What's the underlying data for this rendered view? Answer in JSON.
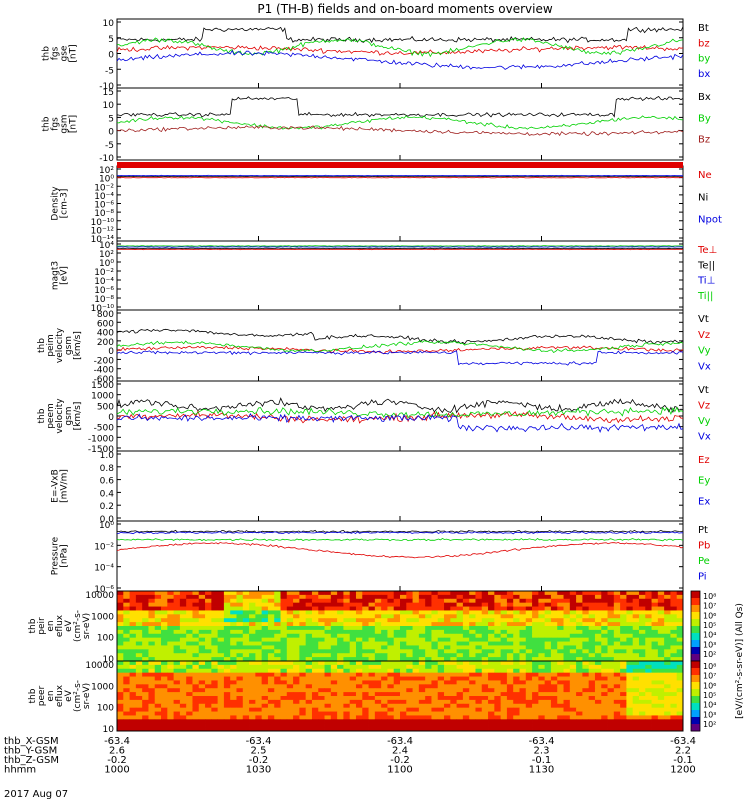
{
  "title": "P1 (TH-B) fields and on-board moments overview",
  "date_label": "2017 Aug 07",
  "colors": {
    "black": "#000000",
    "red": "#e00000",
    "green": "#00d000",
    "blue": "#0000e0",
    "brown": "#a0201f"
  },
  "orbit_rows": [
    {
      "label": "thb_X-GSM",
      "values": [
        "-63.4",
        "-63.4",
        "-63.4",
        "-63.4",
        "-63.4"
      ]
    },
    {
      "label": "thb_Y-GSM",
      "values": [
        "2.6",
        "2.5",
        "2.4",
        "2.3",
        "2.2"
      ]
    },
    {
      "label": "thb_Z-GSM",
      "values": [
        "-0.2",
        "-0.2",
        "-0.2",
        "-0.1",
        "-0.1"
      ]
    },
    {
      "label": "hhmm",
      "values": [
        "1000",
        "1030",
        "1100",
        "1130",
        "1200"
      ]
    }
  ],
  "chart_data": [
    {
      "type": "line",
      "ylabel": [
        "thb",
        "fgs",
        "gse",
        "[nT]"
      ],
      "ylim": [
        -10,
        10
      ],
      "ticks": [
        "10",
        "5",
        "0",
        "-5",
        "-10"
      ],
      "series": [
        {
          "name": "Bt",
          "color": "black"
        },
        {
          "name": "bz",
          "color": "red"
        },
        {
          "name": "by",
          "color": "green"
        },
        {
          "name": "bx",
          "color": "blue"
        }
      ]
    },
    {
      "type": "line",
      "ylabel": [
        "thb",
        "fgs",
        "gsm",
        "[nT]"
      ],
      "ylim": [
        -12,
        15
      ],
      "ticks": [
        "15",
        "10",
        "5",
        "0",
        "-5",
        "-10"
      ],
      "series": [
        {
          "name": "Bx",
          "color": "black"
        },
        {
          "name": "By",
          "color": "green"
        },
        {
          "name": "Bz",
          "color": "brown"
        }
      ]
    },
    {
      "type": "line",
      "ylabel": [
        "Density",
        "[cm-3]"
      ],
      "ylim": [
        -14,
        4
      ],
      "scale": "log",
      "ticks": [
        "10²",
        "10⁰",
        "10⁻²",
        "10⁻⁴",
        "10⁻⁶",
        "10⁻⁸",
        "10⁻¹⁰",
        "10⁻¹²",
        "10⁻¹⁴"
      ],
      "series": [
        {
          "name": "Ne",
          "color": "red"
        },
        {
          "name": "Ni",
          "color": "black"
        },
        {
          "name": "Npot",
          "color": "blue"
        }
      ]
    },
    {
      "type": "line",
      "ylabel": [
        "magt3",
        "[eV]"
      ],
      "ylim": [
        -10,
        4
      ],
      "scale": "log",
      "ticks": [
        "10⁴",
        "10²",
        "10⁰",
        "10⁻²",
        "10⁻⁴",
        "10⁻⁶",
        "10⁻⁸",
        "10⁻¹⁰"
      ],
      "series": [
        {
          "name": "Te⊥",
          "color": "red"
        },
        {
          "name": "Te||",
          "color": "black"
        },
        {
          "name": "Ti⊥",
          "color": "blue"
        },
        {
          "name": "Ti||",
          "color": "green"
        }
      ]
    },
    {
      "type": "line",
      "ylabel": [
        "thb",
        "peim",
        "velocity",
        "gsm",
        "[km/s]"
      ],
      "ylim": [
        -600,
        800
      ],
      "ticks": [
        "800",
        "600",
        "400",
        "200",
        "0",
        "-200",
        "-400",
        "-600"
      ],
      "series": [
        {
          "name": "Vt",
          "color": "black"
        },
        {
          "name": "Vz",
          "color": "red"
        },
        {
          "name": "Vy",
          "color": "green"
        },
        {
          "name": "Vx",
          "color": "blue"
        }
      ]
    },
    {
      "type": "line",
      "ylabel": [
        "thb",
        "peem",
        "velocity",
        "gsm",
        "[km/s]"
      ],
      "ylim": [
        -1500,
        1500
      ],
      "ticks": [
        "1500",
        "1000",
        "500",
        "0",
        "-500",
        "-1000",
        "-1500"
      ],
      "series": [
        {
          "name": "Vt",
          "color": "black"
        },
        {
          "name": "Vz",
          "color": "red"
        },
        {
          "name": "Vy",
          "color": "green"
        },
        {
          "name": "Vx",
          "color": "blue"
        }
      ]
    },
    {
      "type": "line",
      "ylabel": [
        "E=-VxB",
        "[mV/m]"
      ],
      "ylim": [
        0,
        1
      ],
      "ticks": [
        "1.0",
        "0.8",
        "0.6",
        "0.4",
        "0.2",
        "0.0"
      ],
      "series": [
        {
          "name": "Ez",
          "color": "red"
        },
        {
          "name": "Ey",
          "color": "green"
        },
        {
          "name": "Ex",
          "color": "blue"
        }
      ]
    },
    {
      "type": "line",
      "ylabel": [
        "Pressure",
        "[nPa]"
      ],
      "ylim": [
        -6,
        0
      ],
      "scale": "log",
      "ticks": [
        "10⁰",
        "10⁻²",
        "10⁻⁴",
        "10⁻⁶"
      ],
      "series": [
        {
          "name": "Pt",
          "color": "black"
        },
        {
          "name": "Pb",
          "color": "red"
        },
        {
          "name": "Pe",
          "color": "green"
        },
        {
          "name": "Pi",
          "color": "blue"
        }
      ]
    },
    {
      "type": "heatmap",
      "ylabel": [
        "thb",
        "peir",
        "en",
        "eflux",
        "eV",
        "(cm²-s-",
        "sr-eV)"
      ],
      "ylim": [
        5,
        20000
      ],
      "scale": "log",
      "ticks": [
        "10000",
        "1000",
        "100",
        "10"
      ]
    },
    {
      "type": "heatmap",
      "ylabel": [
        "thb",
        "peer",
        "en",
        "eflux",
        "eV",
        "(cm²-s-",
        "sr-eV)"
      ],
      "ylim": [
        5,
        20000
      ],
      "scale": "log",
      "ticks": [
        "10000",
        "1000",
        "100",
        "10"
      ]
    }
  ],
  "colorbar": {
    "label": "[eV/(cm²-s-sr-eV)] (All Qs)",
    "ticks_top": [
      "10⁸",
      "10⁷",
      "10⁶",
      "10⁵",
      "10⁴",
      "10³",
      "10²"
    ],
    "ticks_bottom": [
      "10⁸",
      "10⁷",
      "10⁶",
      "10⁵",
      "10⁴",
      "10³",
      "10²"
    ]
  }
}
